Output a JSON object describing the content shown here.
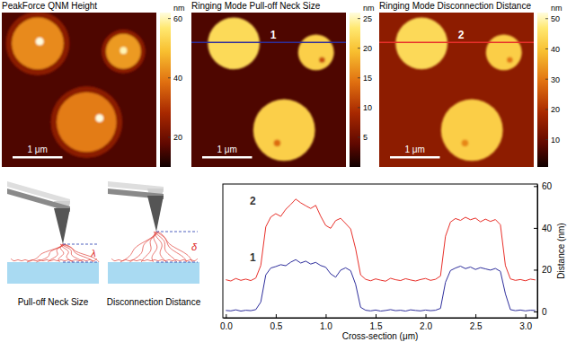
{
  "chart_data": [
    {
      "type": "image",
      "title": "PeakForce QNM Height",
      "xlim": [
        0,
        3.1
      ],
      "ylim": [
        0,
        3.1
      ],
      "background": 16,
      "particles": [
        {
          "x": 0.72,
          "y": 0.62,
          "r": 0.64,
          "value": 24
        },
        {
          "x": 0.72,
          "y": 0.62,
          "r": 0.52,
          "value": 42
        },
        {
          "x": 0.76,
          "y": 0.58,
          "r": 0.08,
          "value": 62
        },
        {
          "x": 2.44,
          "y": 0.78,
          "r": 0.44,
          "value": 24
        },
        {
          "x": 2.44,
          "y": 0.78,
          "r": 0.35,
          "value": 44
        },
        {
          "x": 2.44,
          "y": 0.76,
          "r": 0.07,
          "value": 60
        },
        {
          "x": 1.7,
          "y": 2.2,
          "r": 0.72,
          "value": 24
        },
        {
          "x": 1.7,
          "y": 2.2,
          "r": 0.6,
          "value": 40
        },
        {
          "x": 1.96,
          "y": 2.12,
          "r": 0.08,
          "value": 62
        }
      ],
      "colorbar": {
        "range": [
          10,
          62
        ],
        "ticks": [
          20,
          40,
          60
        ],
        "unit": "nm"
      },
      "scale_bar": {
        "length": 1,
        "label": "1 μm"
      }
    },
    {
      "type": "image",
      "title": "Ringing Mode Pull-off Neck Size",
      "xlim": [
        0,
        3.1
      ],
      "ylim": [
        0,
        3.1
      ],
      "background": 3,
      "particles": [
        {
          "x": 0.85,
          "y": 0.62,
          "r": 0.52,
          "value": 22
        },
        {
          "x": 2.5,
          "y": 0.8,
          "r": 0.36,
          "value": 21
        },
        {
          "x": 1.86,
          "y": 2.36,
          "r": 0.62,
          "value": 21
        },
        {
          "x": 2.62,
          "y": 0.95,
          "r": 0.06,
          "value": 12
        },
        {
          "x": 1.72,
          "y": 2.62,
          "r": 0.07,
          "value": 14
        }
      ],
      "colorbar": {
        "range": [
          0,
          26
        ],
        "ticks": [
          5,
          10,
          15,
          20,
          25
        ],
        "unit": "nm"
      },
      "scale_bar": {
        "length": 1,
        "label": "1 μm"
      },
      "profile": {
        "y": 0.6,
        "label": "1",
        "color": "#2e2e9c"
      }
    },
    {
      "type": "image",
      "title": "Ringing Mode Disconnection Distance",
      "xlim": [
        0,
        3.1
      ],
      "ylim": [
        0,
        3.1
      ],
      "background": 15,
      "particles": [
        {
          "x": 0.85,
          "y": 0.62,
          "r": 0.52,
          "value": 44
        },
        {
          "x": 2.5,
          "y": 0.8,
          "r": 0.36,
          "value": 42
        },
        {
          "x": 1.86,
          "y": 2.36,
          "r": 0.62,
          "value": 42
        },
        {
          "x": 2.62,
          "y": 0.95,
          "r": 0.06,
          "value": 30
        },
        {
          "x": 1.72,
          "y": 2.62,
          "r": 0.07,
          "value": 32
        }
      ],
      "colorbar": {
        "range": [
          1,
          52
        ],
        "ticks": [
          10,
          20,
          30,
          40,
          50
        ],
        "unit": "nm"
      },
      "scale_bar": {
        "length": 1,
        "label": "1 μm"
      },
      "profile": {
        "y": 0.6,
        "label": "2",
        "color": "#e8302a"
      }
    },
    {
      "type": "line",
      "xlabel": "Cross-section (μm)",
      "ylabel": "Distance (nm)",
      "x": [
        0,
        0.05,
        0.1,
        0.15,
        0.2,
        0.25,
        0.3,
        0.35,
        0.4,
        0.45,
        0.5,
        0.55,
        0.6,
        0.65,
        0.7,
        0.75,
        0.8,
        0.85,
        0.9,
        0.95,
        1,
        1.05,
        1.1,
        1.15,
        1.2,
        1.25,
        1.3,
        1.35,
        1.4,
        1.45,
        1.5,
        1.55,
        1.6,
        1.65,
        1.7,
        1.75,
        1.8,
        1.85,
        1.9,
        1.95,
        2,
        2.05,
        2.1,
        2.15,
        2.2,
        2.25,
        2.3,
        2.35,
        2.4,
        2.45,
        2.5,
        2.55,
        2.6,
        2.65,
        2.7,
        2.75,
        2.8,
        2.85,
        2.9,
        2.95,
        3,
        3.05,
        3.1
      ],
      "xlim": [
        -0.03,
        3.12
      ],
      "xticks": [
        {
          "value": 0,
          "label": "0.0"
        },
        0.5,
        {
          "value": 1,
          "label": "1.0"
        },
        1.5,
        {
          "value": 2,
          "label": "2.0"
        },
        2.5,
        {
          "value": 3,
          "label": "3.0"
        }
      ],
      "ylim": [
        -3,
        61
      ],
      "yticks": [
        0,
        20,
        40,
        60
      ],
      "series": [
        {
          "color": "#2e2e9c",
          "values": [
            0.5,
            0.3,
            0.8,
            0.2,
            0.6,
            0.4,
            0.9,
            4.5,
            17.5,
            20.8,
            21.5,
            22.4,
            21.9,
            23.6,
            24.8,
            23.2,
            24.1,
            22.7,
            23.5,
            22.0,
            21.2,
            18.0,
            16.4,
            19.8,
            20.9,
            19.5,
            13.0,
            2.0,
            0.6,
            0.3,
            0.7,
            0.2,
            0.5,
            0.9,
            0.4,
            0.6,
            0.2,
            0.8,
            0.5,
            0.3,
            0.7,
            0.4,
            0.6,
            1.5,
            14.0,
            19.6,
            20.8,
            21.7,
            20.5,
            21.3,
            20.1,
            21.0,
            20.4,
            19.8,
            20.6,
            19.2,
            8.5,
            0.9,
            0.4,
            0.7,
            0.3,
            0.6,
            0.5
          ]
        },
        {
          "color": "#e8302a",
          "values": [
            15.2,
            14.6,
            15.8,
            14.9,
            15.5,
            14.8,
            16.0,
            22.0,
            40.5,
            45.2,
            46.8,
            45.5,
            48.9,
            51.2,
            53.8,
            52.0,
            50.6,
            49.3,
            50.8,
            45.6,
            41.2,
            39.8,
            43.5,
            44.6,
            42.1,
            39.5,
            30.0,
            17.5,
            15.4,
            14.7,
            15.6,
            15.0,
            14.5,
            15.9,
            15.2,
            14.8,
            15.7,
            15.1,
            14.6,
            15.3,
            15.8,
            14.9,
            15.4,
            17.0,
            36.0,
            42.8,
            44.5,
            43.6,
            45.1,
            43.9,
            44.7,
            42.9,
            44.2,
            43.1,
            44.0,
            41.5,
            22.0,
            15.6,
            14.9,
            15.3,
            14.7,
            15.5,
            15.1
          ]
        }
      ],
      "annotations": [
        {
          "text": "2",
          "x": 0.27,
          "y": 51
        },
        {
          "text": "1",
          "x": 0.27,
          "y": 24
        }
      ]
    }
  ],
  "schematics": [
    {
      "caption": "Pull-off Neck Size",
      "symbol": "λ"
    },
    {
      "caption": "Disconnection Distance",
      "symbol": "δ"
    }
  ]
}
